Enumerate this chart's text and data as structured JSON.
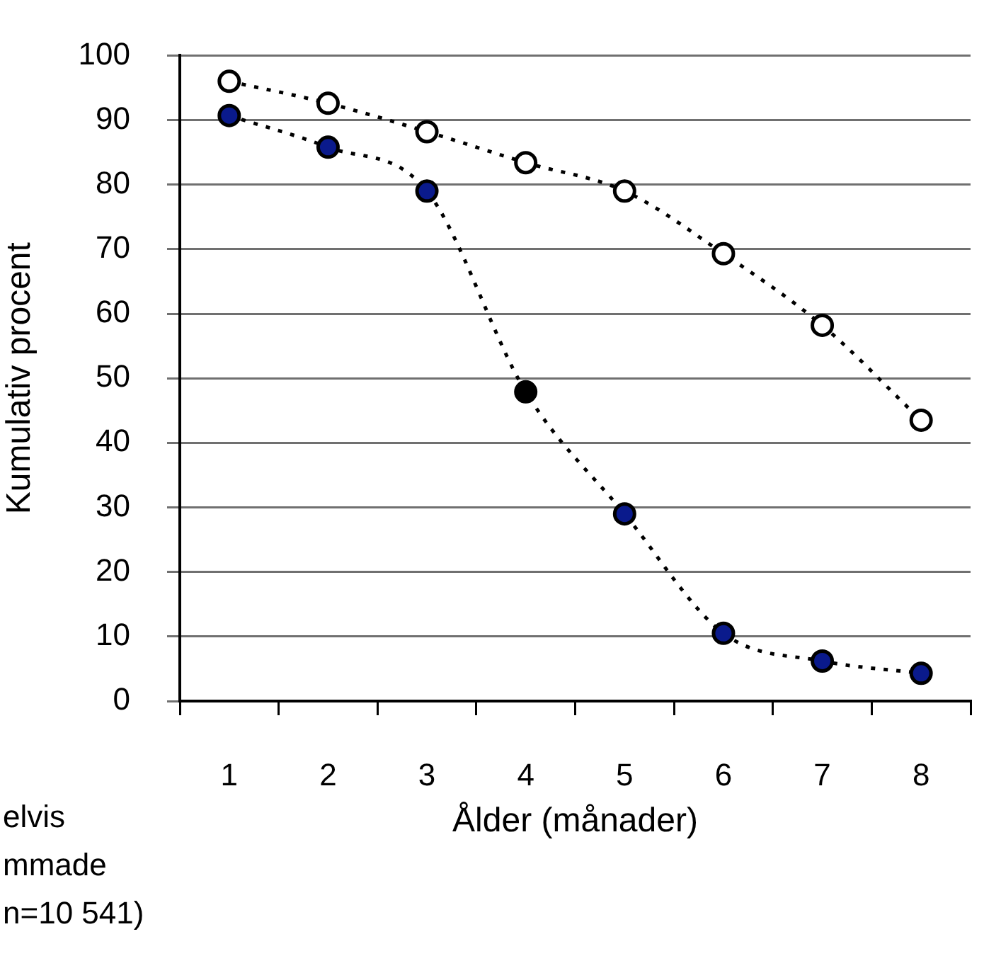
{
  "chart_data": {
    "type": "line",
    "xlabel": "Ålder (månader)",
    "ylabel": "Kumulativ procent",
    "categories": [
      "1",
      "2",
      "3",
      "4",
      "5",
      "6",
      "7",
      "8"
    ],
    "series": [
      {
        "color": "#ffffff",
        "values": [
          96,
          92.6,
          88.2,
          83.4,
          79,
          69.3,
          58.2,
          43.5
        ]
      },
      {
        "colors": [
          "#0a1a8c",
          "#0a1a8c",
          "#0a1a8c",
          "#000000",
          "#0a1a8c",
          "#0a1a8c",
          "#0a1a8c",
          "#0a1a8c"
        ],
        "values": [
          90.7,
          85.8,
          79,
          47.9,
          29,
          10.5,
          6.2,
          4.3
        ]
      }
    ],
    "ylim": [
      0,
      100
    ],
    "yticks": [
      0,
      10,
      20,
      30,
      40,
      50,
      60,
      70,
      80,
      90,
      100
    ],
    "grid": "y",
    "legend": false,
    "marker": "circle",
    "line_style": "dotted",
    "annotations": [
      "elvis\nmmade\nn=10 541)"
    ]
  }
}
